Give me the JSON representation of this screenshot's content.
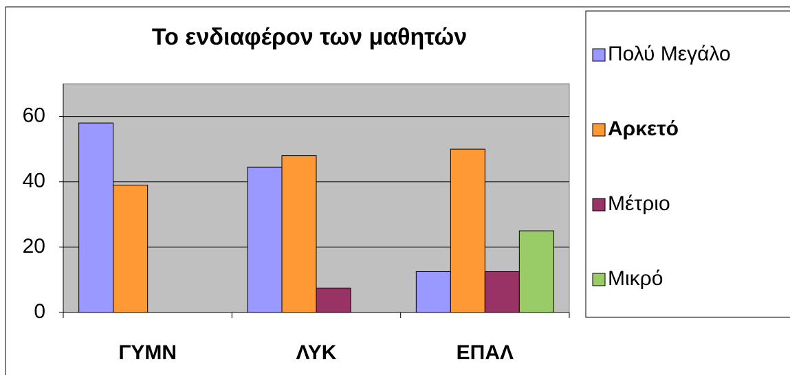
{
  "chart_data": {
    "type": "bar",
    "title": "Το ενδιαφέρον των μαθητών",
    "categories": [
      "ΓΥΜΝ",
      "ΛΥΚ",
      "ΕΠΑΛ"
    ],
    "series": [
      {
        "name": "Πολύ Μεγάλο",
        "color": "#9999ff",
        "values": [
          58,
          44.5,
          12.5
        ]
      },
      {
        "name": "Αρκετό",
        "color": "#ff9933",
        "values": [
          39,
          48,
          50
        ]
      },
      {
        "name": "Μέτριο",
        "color": "#993366",
        "values": [
          0,
          7.5,
          12.5
        ]
      },
      {
        "name": "Μικρό",
        "color": "#99cc66",
        "values": [
          0,
          0,
          25
        ]
      }
    ],
    "ylim": [
      0,
      70
    ],
    "yticks": [
      0,
      20,
      40,
      60
    ],
    "grid": true,
    "legend": "right"
  }
}
